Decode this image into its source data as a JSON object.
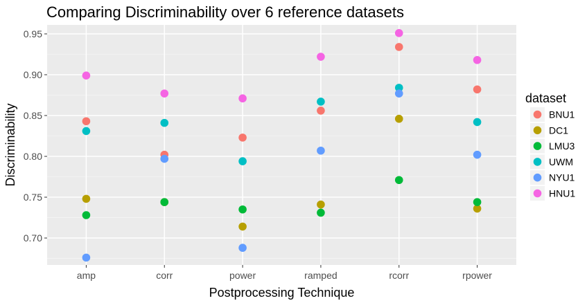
{
  "chart_data": {
    "type": "scatter",
    "title": "Comparing Discriminability over 6 reference datasets",
    "xlabel": "Postprocessing Technique",
    "ylabel": "Discriminability",
    "categories": [
      "amp",
      "corr",
      "power",
      "ramped",
      "rcorr",
      "rpower"
    ],
    "ylim": [
      0.667,
      0.961
    ],
    "yticks": [
      0.7,
      0.75,
      0.8,
      0.85,
      0.9,
      0.95
    ],
    "ytick_labels": [
      "0.70",
      "0.75",
      "0.80",
      "0.85",
      "0.90",
      "0.95"
    ],
    "grid": true,
    "legend": {
      "title": "dataset",
      "position": "right"
    },
    "series": [
      {
        "name": "BNU1",
        "color": "#F8766D",
        "values": [
          0.843,
          0.802,
          0.823,
          0.856,
          0.934,
          0.882
        ]
      },
      {
        "name": "DC1",
        "color": "#B79F00",
        "values": [
          0.748,
          0.744,
          0.714,
          0.741,
          0.846,
          0.736
        ]
      },
      {
        "name": "LMU3",
        "color": "#00BA38",
        "values": [
          0.728,
          0.744,
          0.735,
          0.731,
          0.771,
          0.744
        ]
      },
      {
        "name": "UWM",
        "color": "#00BFC4",
        "values": [
          0.831,
          0.841,
          0.794,
          0.867,
          0.884,
          0.842
        ]
      },
      {
        "name": "NYU1",
        "color": "#619CFF",
        "values": [
          0.676,
          0.797,
          0.688,
          0.807,
          0.877,
          0.802
        ]
      },
      {
        "name": "HNU1",
        "color": "#F564E3",
        "values": [
          0.899,
          0.877,
          0.871,
          0.922,
          0.951,
          0.918
        ]
      }
    ]
  }
}
